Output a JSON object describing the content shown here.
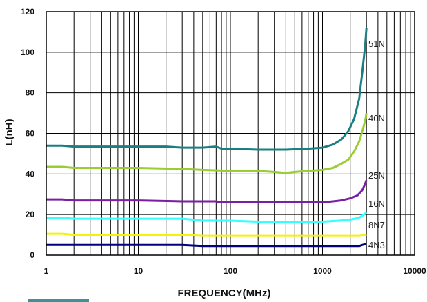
{
  "chart_data": {
    "type": "line",
    "xlabel": "FREQUENCY(MHz)",
    "ylabel": "L(nH)",
    "xscale": "log",
    "xlim": [
      1,
      10000
    ],
    "ylim": [
      0,
      120
    ],
    "grid": true,
    "x_tick_labels": [
      "1",
      "10",
      "100",
      "1000",
      "10000"
    ],
    "y_tick_labels": [
      "0",
      "20",
      "40",
      "60",
      "80",
      "100",
      "120"
    ],
    "series": [
      {
        "name": "51N",
        "color": "#1a7f82",
        "x": [
          1,
          1.5,
          2,
          5,
          10,
          20,
          30,
          50,
          70,
          80,
          100,
          200,
          400,
          700,
          1000,
          1300,
          1600,
          1900,
          2200,
          2500,
          2700,
          2900,
          3000
        ],
        "y": [
          54,
          54,
          53.5,
          53.5,
          53.5,
          53.5,
          53,
          53,
          53.5,
          52.5,
          52.5,
          52,
          52,
          52.5,
          53,
          54.5,
          57,
          61,
          67,
          77,
          90,
          103,
          112
        ]
      },
      {
        "name": "40N",
        "color": "#9acd32",
        "x": [
          1,
          1.5,
          2,
          5,
          10,
          30,
          50,
          100,
          200,
          300,
          400,
          500,
          700,
          1000,
          1300,
          1600,
          1900,
          2200,
          2500,
          2700,
          2900,
          3000
        ],
        "y": [
          43.5,
          43.5,
          43,
          43,
          43,
          42.5,
          42,
          41.5,
          41.5,
          41,
          40.5,
          41,
          41.5,
          42,
          43,
          45,
          47,
          51,
          56,
          61,
          66,
          70
        ]
      },
      {
        "name": "25N",
        "color": "#7b1fa2",
        "x": [
          1,
          1.5,
          2,
          5,
          10,
          30,
          50,
          70,
          80,
          100,
          200,
          400,
          700,
          1000,
          1300,
          1600,
          2000,
          2400,
          2700,
          2900,
          3000
        ],
        "y": [
          27.5,
          27.5,
          27,
          27,
          27,
          26.5,
          26.5,
          26.5,
          26,
          26,
          26,
          26,
          26,
          26,
          26.5,
          27,
          28,
          29.5,
          32,
          35,
          37
        ]
      },
      {
        "name": "16N",
        "color": "#33ffff",
        "x": [
          1,
          1.5,
          2,
          5,
          10,
          30,
          40,
          50,
          100,
          200,
          400,
          700,
          1000,
          1500,
          2000,
          2500,
          2800,
          3000
        ],
        "y": [
          18.5,
          18.5,
          18,
          18,
          18,
          18,
          17.5,
          17,
          17,
          16.5,
          16.5,
          16.5,
          16.5,
          17,
          17.5,
          18.5,
          20,
          21
        ]
      },
      {
        "name": "8N7",
        "color": "#f2f20d",
        "x": [
          1,
          1.5,
          2,
          5,
          10,
          30,
          50,
          100,
          200,
          500,
          1000,
          2000,
          2500,
          3000
        ],
        "y": [
          10.5,
          10.5,
          10,
          10,
          10,
          10,
          9.5,
          9.5,
          9.5,
          9.5,
          9.5,
          9.5,
          9.5,
          10
        ]
      },
      {
        "name": "4N3",
        "color": "#000080",
        "x": [
          1,
          2,
          10,
          30,
          50,
          100,
          500,
          1000,
          2000,
          2500,
          2700,
          3000
        ],
        "y": [
          5,
          5,
          5,
          5,
          4.5,
          4.5,
          4.5,
          4.5,
          4.5,
          4.5,
          5,
          5.5
        ]
      }
    ]
  }
}
